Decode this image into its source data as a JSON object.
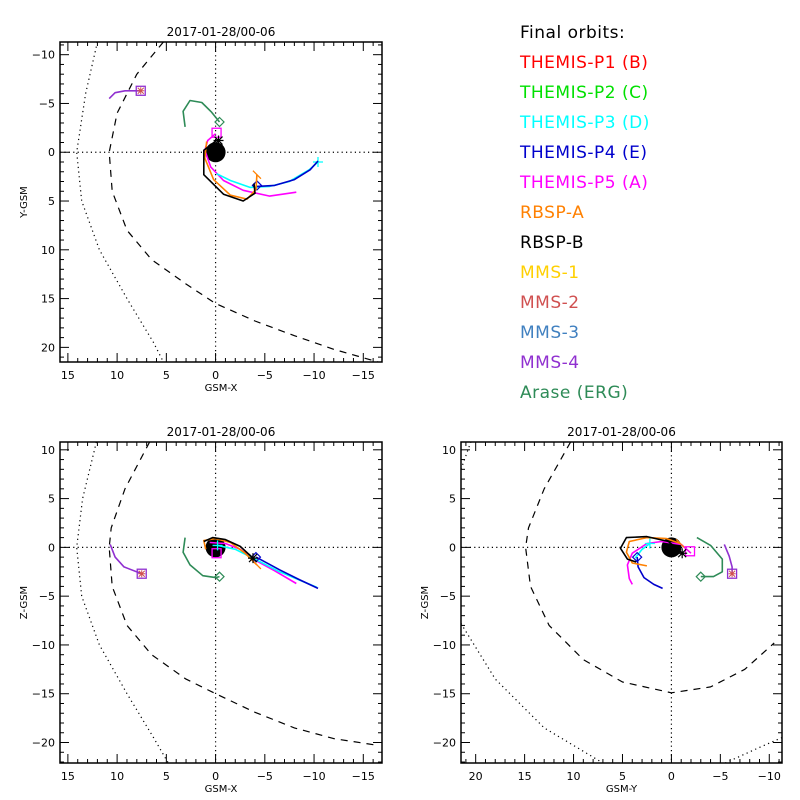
{
  "legend": {
    "title": "Final orbits:",
    "items": [
      {
        "label": "THEMIS-P1 (B)",
        "color": "#ff0000"
      },
      {
        "label": "THEMIS-P2 (C)",
        "color": "#00e000"
      },
      {
        "label": "THEMIS-P3 (D)",
        "color": "#00ffff"
      },
      {
        "label": "THEMIS-P4 (E)",
        "color": "#0000cc"
      },
      {
        "label": "THEMIS-P5 (A)",
        "color": "#ff00ff"
      },
      {
        "label": "RBSP-A",
        "color": "#ff8000"
      },
      {
        "label": "RBSP-B",
        "color": "#000000"
      },
      {
        "label": "MMS-1",
        "color": "#ffd000"
      },
      {
        "label": "MMS-2",
        "color": "#d05050"
      },
      {
        "label": "MMS-3",
        "color": "#4080c0"
      },
      {
        "label": "MMS-4",
        "color": "#9030d0"
      },
      {
        "label": "Arase (ERG)",
        "color": "#2e8b57"
      }
    ]
  },
  "chart_data": [
    {
      "id": "xy",
      "type": "line",
      "title": "2017-01-28/00-06",
      "xlabel": "GSM-X",
      "ylabel": "Y-GSM",
      "xlim": [
        15.8,
        -16.9
      ],
      "ylim": [
        -11.3,
        21.5
      ],
      "y_inverted": true,
      "xticks": [
        15,
        10,
        5,
        0,
        -5,
        -10,
        -15
      ],
      "yticks": [
        -10,
        -5,
        0,
        5,
        10,
        15,
        20
      ],
      "boundaries": [
        {
          "name": "bow-shock",
          "style": "dotted",
          "points": [
            [
              12,
              -11.3
            ],
            [
              13.2,
              -6
            ],
            [
              14.1,
              0
            ],
            [
              13.6,
              5
            ],
            [
              11.8,
              10
            ],
            [
              9,
              15
            ],
            [
              6.3,
              19.5
            ],
            [
              5.3,
              21.5
            ]
          ]
        },
        {
          "name": "magnetopause",
          "style": "dashed",
          "points": [
            [
              5.3,
              -11.3
            ],
            [
              8,
              -8
            ],
            [
              10,
              -4
            ],
            [
              10.8,
              0
            ],
            [
              10.5,
              4
            ],
            [
              9,
              8
            ],
            [
              6.5,
              11
            ],
            [
              3,
              13.5
            ],
            [
              0,
              15.5
            ],
            [
              -4,
              17.3
            ],
            [
              -8,
              18.8
            ],
            [
              -12,
              20.2
            ],
            [
              -16.5,
              21.5
            ]
          ]
        }
      ],
      "series": [
        {
          "name": "MMS",
          "color": "#9030d0",
          "points": [
            [
              10.8,
              -5.5
            ],
            [
              10.2,
              -6.1
            ],
            [
              9.2,
              -6.3
            ],
            [
              7.6,
              -6.3
            ]
          ],
          "end_marker": "square-star"
        },
        {
          "name": "Arase (ERG)",
          "color": "#2e8b57",
          "points": [
            [
              3.1,
              -2.6
            ],
            [
              3.3,
              -4.2
            ],
            [
              2.6,
              -5.3
            ],
            [
              1.4,
              -5.1
            ],
            [
              0.4,
              -4.1
            ],
            [
              -0.4,
              -3.1
            ]
          ],
          "end_marker": "diamond"
        },
        {
          "name": "THEMIS-P5 (A)",
          "color": "#ff00ff",
          "points": [
            [
              0,
              -1.9
            ],
            [
              0.8,
              -1.2
            ],
            [
              1.1,
              -0.2
            ],
            [
              0.5,
              1.5
            ],
            [
              -0.8,
              2.9
            ],
            [
              -2.8,
              3.9
            ],
            [
              -5.5,
              4.5
            ],
            [
              -8.2,
              4.1
            ]
          ],
          "end_marker": "square",
          "marker_at": [
            -0.1,
            -2.0
          ]
        },
        {
          "name": "THEMIS-P3 (D)",
          "color": "#00ffff",
          "points": [
            [
              -0.1,
              2.2
            ],
            [
              -1.5,
              2.9
            ],
            [
              -3.5,
              3.6
            ],
            [
              -5.5,
              3.5
            ],
            [
              -7.5,
              3.0
            ],
            [
              -9.5,
              1.8
            ],
            [
              -10.4,
              1.0
            ]
          ],
          "end_marker": "plus"
        },
        {
          "name": "THEMIS-P4 (E)",
          "color": "#0000cc",
          "points": [
            [
              -4.2,
              3.5
            ],
            [
              -6,
              3.4
            ],
            [
              -8,
              2.8
            ],
            [
              -9.6,
              1.8
            ],
            [
              -10.4,
              0.9
            ]
          ],
          "end_marker": "diamond",
          "marker_at": [
            -4.2,
            3.4
          ]
        },
        {
          "name": "RBSP-A",
          "color": "#ff8000",
          "points": [
            [
              0.9,
              -1.1
            ],
            [
              1.1,
              0.6
            ],
            [
              0.2,
              2.8
            ],
            [
              -1.5,
              4.4
            ],
            [
              -3.2,
              4.8
            ],
            [
              -4.1,
              3.8
            ],
            [
              -4.2,
              2.3
            ]
          ],
          "end_marker": "tick"
        },
        {
          "name": "RBSP-B",
          "color": "#000000",
          "points": [
            [
              -0.2,
              -1.3
            ],
            [
              1.2,
              -0.2
            ],
            [
              1.2,
              2.3
            ],
            [
              -0.8,
              4.3
            ],
            [
              -2.8,
              5.0
            ],
            [
              -4.0,
              4.2
            ],
            [
              -3.9,
              3.2
            ]
          ],
          "end_marker": "star",
          "marker_at": [
            -0.3,
            -1.2
          ]
        }
      ]
    },
    {
      "id": "xz",
      "type": "line",
      "title": "2017-01-28/00-06",
      "xlabel": "GSM-X",
      "ylabel": "Z-GSM",
      "xlim": [
        15.8,
        -16.9
      ],
      "ylim": [
        10.8,
        -22.1
      ],
      "xticks": [
        15,
        10,
        5,
        0,
        -5,
        -10,
        -15
      ],
      "yticks": [
        10,
        5,
        0,
        -5,
        -10,
        -15,
        -20
      ],
      "boundaries": [
        {
          "name": "bow-shock",
          "style": "dotted",
          "points": [
            [
              12.1,
              10.8
            ],
            [
              13.5,
              5
            ],
            [
              14.1,
              0
            ],
            [
              13.6,
              -5
            ],
            [
              11.8,
              -10
            ],
            [
              9,
              -15
            ],
            [
              6.3,
              -19.5
            ],
            [
              4.8,
              -22.1
            ]
          ]
        },
        {
          "name": "magnetopause",
          "style": "dashed",
          "points": [
            [
              6.7,
              10.8
            ],
            [
              9.2,
              6
            ],
            [
              10.6,
              2
            ],
            [
              10.8,
              0
            ],
            [
              10.5,
              -4
            ],
            [
              9,
              -8
            ],
            [
              6.5,
              -11
            ],
            [
              3,
              -13.5
            ],
            [
              0,
              -15
            ],
            [
              -4,
              -16.9
            ],
            [
              -8,
              -18.5
            ],
            [
              -12,
              -19.6
            ],
            [
              -16.5,
              -20.3
            ]
          ]
        }
      ],
      "series": [
        {
          "name": "MMS",
          "color": "#9030d0",
          "points": [
            [
              10.7,
              0.3
            ],
            [
              10.2,
              -1.0
            ],
            [
              9.3,
              -2.0
            ],
            [
              7.5,
              -2.7
            ]
          ],
          "end_marker": "square-star"
        },
        {
          "name": "Arase (ERG)",
          "color": "#2e8b57",
          "points": [
            [
              3.1,
              1.0
            ],
            [
              3.3,
              -0.5
            ],
            [
              2.6,
              -1.8
            ],
            [
              1.3,
              -2.9
            ],
            [
              0,
              -3.1
            ],
            [
              -0.4,
              -3.0
            ]
          ],
          "end_marker": "diamond"
        },
        {
          "name": "THEMIS-P5 (A)",
          "color": "#ff00ff",
          "points": [
            [
              0.6,
              0.5
            ],
            [
              -1,
              0.4
            ],
            [
              -2.5,
              -0.2
            ],
            [
              -4,
              -1.3
            ],
            [
              -6,
              -2.4
            ],
            [
              -8.2,
              -3.7
            ]
          ],
          "end_marker": "square",
          "marker_at": [
            -0.1,
            -0.6
          ]
        },
        {
          "name": "THEMIS-P3 (D)",
          "color": "#00ffff",
          "points": [
            [
              -0.2,
              0.2
            ],
            [
              -2,
              -0.2
            ],
            [
              -4,
              -1.2
            ],
            [
              -6.5,
              -2.5
            ],
            [
              -10.3,
              -4.1
            ]
          ],
          "end_marker": "plus",
          "marker_at": [
            -0.2,
            0.2
          ]
        },
        {
          "name": "THEMIS-P4 (E)",
          "color": "#0000cc",
          "points": [
            [
              -4.1,
              -1.0
            ],
            [
              -6.5,
              -2.3
            ],
            [
              -8.5,
              -3.3
            ],
            [
              -10.4,
              -4.2
            ]
          ],
          "end_marker": "diamond",
          "marker_at": [
            -4.1,
            -1.0
          ]
        },
        {
          "name": "RBSP-A",
          "color": "#ff8000",
          "points": [
            [
              1,
              -0.2
            ],
            [
              1.2,
              0.7
            ],
            [
              0,
              0.9
            ],
            [
              -1.5,
              0.5
            ],
            [
              -3,
              -0.6
            ],
            [
              -4.2,
              -1.8
            ]
          ],
          "end_marker": "tick"
        },
        {
          "name": "RBSP-B",
          "color": "#000000",
          "points": [
            [
              1.2,
              0.6
            ],
            [
              0.3,
              1.0
            ],
            [
              -1,
              0.8
            ],
            [
              -2.5,
              0.1
            ],
            [
              -3.8,
              -1.1
            ]
          ],
          "end_marker": "star"
        }
      ]
    },
    {
      "id": "yz",
      "type": "line",
      "title": "2017-01-28/00-06",
      "xlabel": "GSM-Y",
      "ylabel": "Z-GSM",
      "xlim": [
        21.5,
        -11.3
      ],
      "ylim": [
        10.8,
        -22.1
      ],
      "xticks": [
        20,
        15,
        10,
        5,
        0,
        -5,
        -10
      ],
      "yticks": [
        10,
        5,
        0,
        -5,
        -10,
        -15,
        -20
      ],
      "boundaries": [
        {
          "name": "bow-shock-left",
          "style": "dotted",
          "points": [
            [
              21.5,
              8
            ],
            [
              20.5,
              10.8
            ]
          ]
        },
        {
          "name": "bow-shock-bottom",
          "style": "dotted",
          "points": [
            [
              21.5,
              -7.8
            ],
            [
              18,
              -13.5
            ],
            [
              13,
              -18.5
            ],
            [
              7,
              -22.1
            ]
          ]
        },
        {
          "name": "bow-shock-right",
          "style": "dotted",
          "points": [
            [
              -5.5,
              -22.1
            ],
            [
              -9,
              -20.5
            ],
            [
              -11.3,
              -19.5
            ]
          ]
        },
        {
          "name": "magnetopause",
          "style": "dashed",
          "points": [
            [
              10.3,
              10.8
            ],
            [
              13,
              6
            ],
            [
              14.6,
              2
            ],
            [
              14.9,
              0
            ],
            [
              14.4,
              -4
            ],
            [
              12.5,
              -8
            ],
            [
              9,
              -11.5
            ],
            [
              5,
              -13.8
            ],
            [
              0,
              -14.9
            ],
            [
              -4,
              -14.3
            ],
            [
              -7.5,
              -12.5
            ],
            [
              -10.5,
              -9.8
            ]
          ]
        }
      ],
      "series": [
        {
          "name": "MMS",
          "color": "#9030d0",
          "points": [
            [
              -5.4,
              0.3
            ],
            [
              -5.9,
              -0.9
            ],
            [
              -6.2,
              -2.0
            ],
            [
              -6.2,
              -2.7
            ]
          ],
          "end_marker": "square-star"
        },
        {
          "name": "Arase (ERG)",
          "color": "#2e8b57",
          "points": [
            [
              -2.6,
              1.0
            ],
            [
              -4.0,
              0.2
            ],
            [
              -5.2,
              -1.2
            ],
            [
              -5.2,
              -2.5
            ],
            [
              -4.3,
              -3.0
            ],
            [
              -3.0,
              -3.0
            ]
          ],
          "end_marker": "diamond"
        },
        {
          "name": "THEMIS-P5 (A)",
          "color": "#ff00ff",
          "points": [
            [
              -2.0,
              -0.6
            ],
            [
              -1.0,
              0.3
            ],
            [
              1,
              0.6
            ],
            [
              2.5,
              0.4
            ],
            [
              4,
              -0.6
            ],
            [
              4.5,
              -1.8
            ],
            [
              4.3,
              -3.2
            ],
            [
              4,
              -3.8
            ]
          ],
          "end_marker": "square",
          "marker_at": [
            -1.9,
            -0.4
          ]
        },
        {
          "name": "THEMIS-P3 (D)",
          "color": "#00ffff",
          "points": [
            [
              2.2,
              0.4
            ],
            [
              3.0,
              -0.2
            ],
            [
              3.7,
              -1.1
            ]
          ],
          "end_marker": "plus",
          "marker_at": [
            2.2,
            0.4
          ]
        },
        {
          "name": "THEMIS-P4 (E)",
          "color": "#0000cc",
          "points": [
            [
              3.5,
              -1.0
            ],
            [
              3.4,
              -2.0
            ],
            [
              2.8,
              -3.1
            ],
            [
              1.8,
              -3.8
            ],
            [
              0.9,
              -4.2
            ]
          ],
          "end_marker": "diamond",
          "marker_at": [
            3.5,
            -1.0
          ]
        },
        {
          "name": "RBSP-A",
          "color": "#ff8000",
          "points": [
            [
              -0.9,
              0.4
            ],
            [
              0.5,
              0.9
            ],
            [
              2.5,
              1.0
            ],
            [
              4.3,
              0.6
            ],
            [
              4.6,
              -0.5
            ],
            [
              4.0,
              -1.6
            ],
            [
              2.5,
              -1.9
            ]
          ],
          "end_marker": "tick",
          "marker_at": [
            -0.9,
            0.4
          ]
        },
        {
          "name": "RBSP-B",
          "color": "#000000",
          "points": [
            [
              -1.1,
              -0.6
            ],
            [
              0.3,
              0.6
            ],
            [
              2.5,
              1.1
            ],
            [
              4.6,
              1.0
            ],
            [
              5.2,
              -0.1
            ],
            [
              4.5,
              -1.2
            ],
            [
              3.6,
              -1.5
            ]
          ],
          "end_marker": "star",
          "marker_at": [
            -1.1,
            -0.6
          ]
        }
      ]
    }
  ]
}
